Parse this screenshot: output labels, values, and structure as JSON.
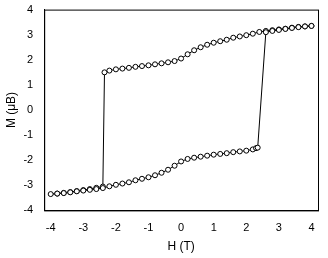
{
  "chart_data": {
    "type": "scatter",
    "x_label": "H (T)",
    "y_label": "M (μB)",
    "x": [
      4.0,
      3.8,
      3.6,
      3.4,
      3.2,
      3.0,
      2.8,
      2.6,
      2.4,
      2.2,
      2.0,
      1.8,
      1.6,
      1.4,
      1.2,
      1.0,
      0.8,
      0.6,
      0.4,
      0.2,
      0.0,
      -0.2,
      -0.4,
      -0.6,
      -0.8,
      -1.0,
      -1.2,
      -1.4,
      -1.6,
      -1.8,
      -2.0,
      -2.2,
      -2.35,
      -2.4,
      -2.6,
      -2.8,
      -3.0,
      -3.2,
      -3.4,
      -3.6,
      -3.8,
      -4.0,
      -3.8,
      -3.6,
      -3.4,
      -3.2,
      -3.0,
      -2.8,
      -2.6,
      -2.4,
      -2.2,
      -2.0,
      -1.8,
      -1.6,
      -1.4,
      -1.2,
      -1.0,
      -0.8,
      -0.6,
      -0.4,
      -0.2,
      0.0,
      0.2,
      0.4,
      0.6,
      0.8,
      1.0,
      1.2,
      1.4,
      1.6,
      1.8,
      2.0,
      2.2,
      2.3,
      2.35,
      2.6,
      2.8,
      3.0,
      3.2,
      3.4,
      3.6,
      3.8,
      4.0
    ],
    "values": [
      3.35,
      3.33,
      3.31,
      3.28,
      3.24,
      3.21,
      3.18,
      3.15,
      3.11,
      3.04,
      2.98,
      2.93,
      2.88,
      2.8,
      2.74,
      2.68,
      2.6,
      2.5,
      2.38,
      2.22,
      2.05,
      1.95,
      1.9,
      1.86,
      1.82,
      1.78,
      1.75,
      1.72,
      1.68,
      1.65,
      1.62,
      1.57,
      1.5,
      -3.05,
      -3.1,
      -3.15,
      -3.19,
      -3.23,
      -3.27,
      -3.3,
      -3.33,
      -3.35,
      -3.33,
      -3.31,
      -3.28,
      -3.24,
      -3.21,
      -3.18,
      -3.15,
      -3.11,
      -3.04,
      -2.98,
      -2.93,
      -2.88,
      -2.8,
      -2.74,
      -2.68,
      -2.6,
      -2.5,
      -2.38,
      -2.22,
      -2.05,
      -1.95,
      -1.9,
      -1.86,
      -1.82,
      -1.78,
      -1.75,
      -1.72,
      -1.68,
      -1.65,
      -1.62,
      -1.57,
      -1.52,
      -1.5,
      3.1,
      3.15,
      3.19,
      3.23,
      3.27,
      3.3,
      3.33,
      3.35
    ],
    "color": "#000000",
    "marker": "circle",
    "line_style": "solid",
    "xlim": [
      -4.2,
      4.2
    ],
    "xticks": [
      -4,
      -3,
      -2,
      -1,
      0,
      1,
      2,
      3,
      4
    ],
    "ylim": [
      -4,
      4
    ],
    "yticks": [
      -4,
      -3,
      -2,
      -1,
      0,
      1,
      2,
      3,
      4
    ],
    "grid": false
  }
}
